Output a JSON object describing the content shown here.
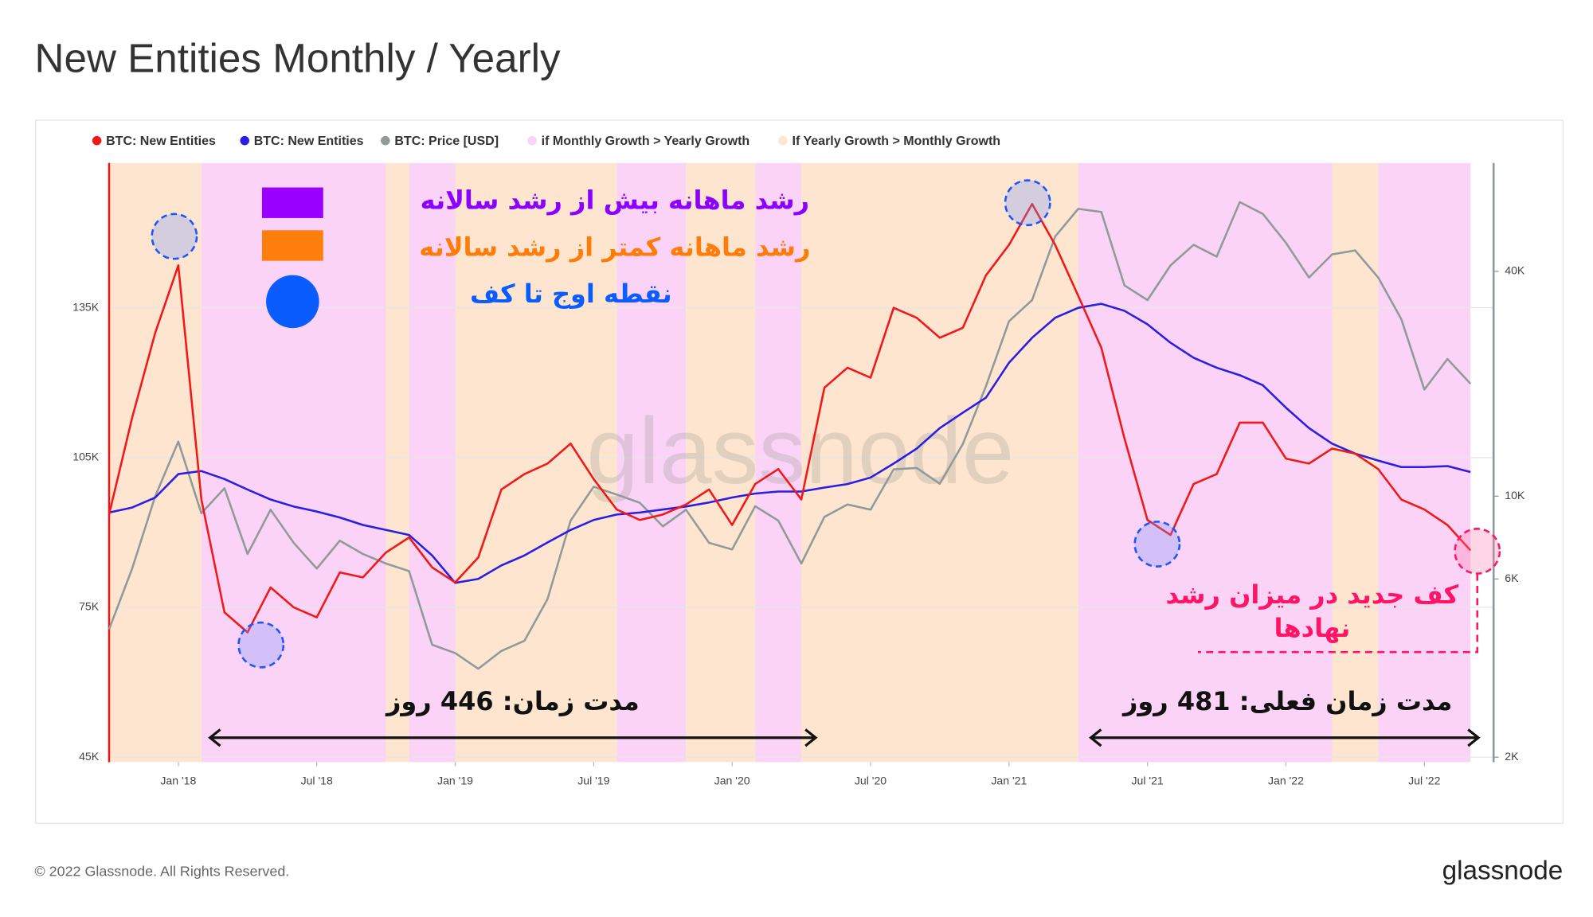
{
  "chart_data": {
    "type": "line",
    "title": "New Entities Monthly / Yearly",
    "footer": "© 2022 Glassnode. All Rights Reserved.",
    "logo": "glassnode",
    "watermark": "glassnode",
    "x": [
      "2017-10",
      "2017-11",
      "2017-12",
      "2018-01",
      "2018-02",
      "2018-03",
      "2018-04",
      "2018-05",
      "2018-06",
      "2018-07",
      "2018-08",
      "2018-09",
      "2018-10",
      "2018-11",
      "2018-12",
      "2019-01",
      "2019-02",
      "2019-03",
      "2019-04",
      "2019-05",
      "2019-06",
      "2019-07",
      "2019-08",
      "2019-09",
      "2019-10",
      "2019-11",
      "2019-12",
      "2020-01",
      "2020-02",
      "2020-03",
      "2020-04",
      "2020-05",
      "2020-06",
      "2020-07",
      "2020-08",
      "2020-09",
      "2020-10",
      "2020-11",
      "2020-12",
      "2021-01",
      "2021-02",
      "2021-03",
      "2021-04",
      "2021-05",
      "2021-06",
      "2021-07",
      "2021-08",
      "2021-09",
      "2021-10",
      "2021-11",
      "2021-12",
      "2022-01",
      "2022-02",
      "2022-03",
      "2022-04",
      "2022-05",
      "2022-06",
      "2022-07",
      "2022-08",
      "2022-09"
    ],
    "xlim": [
      "2017-10",
      "2022-10"
    ],
    "xticks": [
      {
        "value": "2018-01",
        "label": "Jan '18"
      },
      {
        "value": "2018-07",
        "label": "Jul '18"
      },
      {
        "value": "2019-01",
        "label": "Jan '19"
      },
      {
        "value": "2019-07",
        "label": "Jul '19"
      },
      {
        "value": "2020-01",
        "label": "Jan '20"
      },
      {
        "value": "2020-07",
        "label": "Jul '20"
      },
      {
        "value": "2021-01",
        "label": "Jan '21"
      },
      {
        "value": "2021-07",
        "label": "Jul '21"
      },
      {
        "value": "2022-01",
        "label": "Jan '22"
      },
      {
        "value": "2022-07",
        "label": "Jul '22"
      }
    ],
    "ylim": [
      44000,
      164000
    ],
    "yticks": [
      {
        "value": 45000,
        "label": "45K"
      },
      {
        "value": 75000,
        "label": "75K"
      },
      {
        "value": 105000,
        "label": "105K"
      },
      {
        "value": 135000,
        "label": "135K"
      }
    ],
    "y2lim": [
      1940,
      78000
    ],
    "y2scale": "log",
    "y2ticks": [
      {
        "value": 2000,
        "label": "2K"
      },
      {
        "value": 6000,
        "label": "6K"
      },
      {
        "value": 10000,
        "label": "10K"
      },
      {
        "value": 40000,
        "label": "40K"
      }
    ],
    "grid": true,
    "series": [
      {
        "name": "BTC: Price [USD]",
        "color": "#8f9a9a",
        "axis": "y2",
        "values": [
          4400,
          6400,
          10000,
          14000,
          9000,
          10500,
          7000,
          9200,
          7500,
          6400,
          7600,
          7000,
          6600,
          6300,
          4000,
          3800,
          3450,
          3850,
          4100,
          5300,
          8600,
          10600,
          10100,
          9600,
          8300,
          9200,
          7500,
          7200,
          9400,
          8600,
          6600,
          8800,
          9500,
          9200,
          11800,
          11900,
          10800,
          13800,
          19700,
          29400,
          33500,
          49600,
          58800,
          57700,
          36700,
          33500,
          41500,
          47100,
          43800,
          61300,
          57000,
          47700,
          38500,
          44400,
          45500,
          38500,
          29800,
          19300,
          23300,
          20000
        ]
      },
      {
        "name": "BTC: New Entities",
        "color": "#2a1ee6",
        "values": [
          94000,
          95000,
          97000,
          101700,
          102300,
          100700,
          98600,
          96600,
          95200,
          94200,
          93000,
          91500,
          90500,
          89500,
          85400,
          79900,
          80700,
          83400,
          85400,
          88000,
          90500,
          92500,
          93600,
          94000,
          94600,
          95200,
          96000,
          97000,
          97800,
          98200,
          98200,
          99000,
          99700,
          101000,
          103800,
          106800,
          110900,
          114000,
          117000,
          124000,
          129000,
          133000,
          135000,
          135800,
          134400,
          131700,
          128000,
          125000,
          123000,
          121500,
          119500,
          115000,
          110900,
          107800,
          105800,
          104400,
          103100,
          103100,
          103300,
          102100
        ]
      },
      {
        "name": "BTC: New Entities",
        "color": "#f21818",
        "values": [
          93600,
          113000,
          130000,
          143500,
          96600,
          74000,
          70000,
          79000,
          75000,
          73000,
          82000,
          81000,
          86000,
          89000,
          83000,
          80000,
          85000,
          98600,
          101700,
          103800,
          107800,
          100700,
          94600,
          92500,
          93600,
          95600,
          98600,
          91500,
          99700,
          102700,
          96600,
          119000,
          123000,
          121000,
          135000,
          133000,
          129000,
          131000,
          141500,
          147600,
          155800,
          147600,
          137400,
          127000,
          108900,
          92500,
          89500,
          99700,
          101700,
          112000,
          112000,
          104800,
          103800,
          106800,
          105800,
          102700,
          96600,
          94600,
          91500,
          86400
        ]
      }
    ],
    "shading": [
      {
        "name": "if Monthly Growth > Yearly Growth",
        "color": "#fbd3f6",
        "ranges": [
          [
            "2018-02",
            "2018-10"
          ],
          [
            "2018-11",
            "2019-01"
          ],
          [
            "2019-08",
            "2019-11"
          ],
          [
            "2020-02",
            "2020-04"
          ],
          [
            "2021-04",
            "2022-03"
          ],
          [
            "2022-05",
            "2022-09"
          ]
        ]
      },
      {
        "name": "If Yearly Growth > Monthly Growth",
        "color": "#fde5cf",
        "ranges": [
          [
            "2017-10",
            "2018-02"
          ],
          [
            "2018-10",
            "2018-11"
          ],
          [
            "2019-01",
            "2019-08"
          ],
          [
            "2019-11",
            "2020-02"
          ],
          [
            "2020-04",
            "2021-04"
          ],
          [
            "2022-03",
            "2022-05"
          ]
        ]
      }
    ],
    "annotations": [
      {
        "text": "رشد ماهانه  بیش از رشد سالانه",
        "color": "#8b00ff"
      },
      {
        "text": "رشد ماهانه  کمتر از رشد سالانه",
        "color": "#ff7c0a"
      },
      {
        "text": "نقطه اوج تا کف",
        "color": "#0a5cff"
      },
      {
        "text": "مدت زمان: 446 روز",
        "color": "#111111"
      },
      {
        "text": "مدت زمان فعلی: 481 روز",
        "color": "#111111"
      },
      {
        "text": "کف جدید در میزان رشد",
        "color": "#ff1466"
      },
      {
        "text": "نهادها",
        "color": "#ff1466"
      }
    ]
  }
}
